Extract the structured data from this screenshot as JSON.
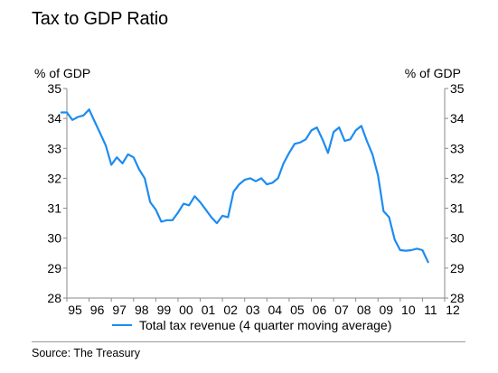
{
  "title": "Tax to GDP Ratio",
  "source": "Source: The Treasury",
  "chart_data": {
    "type": "line",
    "ylabel_left": "% of GDP",
    "ylabel_right": "% of GDP",
    "ylim": [
      28,
      35
    ],
    "yticks": [
      28,
      29,
      30,
      31,
      32,
      33,
      34,
      35
    ],
    "xlim": [
      1995,
      2012
    ],
    "xtick_values": [
      1995,
      1996,
      1997,
      1998,
      1999,
      2000,
      2001,
      2002,
      2003,
      2004,
      2005,
      2006,
      2007,
      2008,
      2009,
      2010,
      2011,
      2012
    ],
    "xtick_labels": [
      "95",
      "96",
      "97",
      "98",
      "99",
      "00",
      "01",
      "02",
      "03",
      "04",
      "05",
      "06",
      "07",
      "08",
      "09",
      "10",
      "11",
      "12"
    ],
    "grid": false,
    "legend_position": "bottom",
    "colors": {
      "series": "#1c8cf0",
      "axis": "#8a8a8a"
    },
    "series": [
      {
        "name": "Total tax revenue (4 quarter moving average)",
        "x": [
          1994.75,
          1995.0,
          1995.25,
          1995.5,
          1995.75,
          1996.0,
          1996.25,
          1996.5,
          1996.75,
          1997.0,
          1997.25,
          1997.5,
          1997.75,
          1998.0,
          1998.25,
          1998.5,
          1998.75,
          1999.0,
          1999.25,
          1999.5,
          1999.75,
          2000.0,
          2000.25,
          2000.5,
          2000.75,
          2001.0,
          2001.25,
          2001.5,
          2001.75,
          2002.0,
          2002.25,
          2002.5,
          2002.75,
          2003.0,
          2003.25,
          2003.5,
          2003.75,
          2004.0,
          2004.25,
          2004.5,
          2004.75,
          2005.0,
          2005.25,
          2005.5,
          2005.75,
          2006.0,
          2006.25,
          2006.5,
          2006.75,
          2007.0,
          2007.25,
          2007.5,
          2007.75,
          2008.0,
          2008.25,
          2008.5,
          2008.75,
          2009.0,
          2009.25,
          2009.5,
          2009.75,
          2010.0,
          2010.25,
          2010.5,
          2010.75,
          2011.0,
          2011.25
        ],
        "y": [
          34.2,
          34.2,
          33.95,
          34.05,
          34.1,
          34.3,
          33.9,
          33.5,
          33.1,
          32.45,
          32.7,
          32.5,
          32.8,
          32.7,
          32.3,
          32.0,
          31.2,
          30.95,
          30.55,
          30.6,
          30.6,
          30.85,
          31.15,
          31.1,
          31.4,
          31.2,
          30.95,
          30.7,
          30.5,
          30.75,
          30.7,
          31.55,
          31.8,
          31.95,
          32.0,
          31.9,
          32.0,
          31.8,
          31.85,
          32.0,
          32.5,
          32.85,
          33.15,
          33.2,
          33.3,
          33.6,
          33.7,
          33.3,
          32.85,
          33.55,
          33.7,
          33.25,
          33.3,
          33.6,
          33.75,
          33.25,
          32.8,
          32.1,
          30.9,
          30.7,
          29.95,
          29.6,
          29.58,
          29.6,
          29.65,
          29.6,
          29.2
        ]
      }
    ]
  }
}
